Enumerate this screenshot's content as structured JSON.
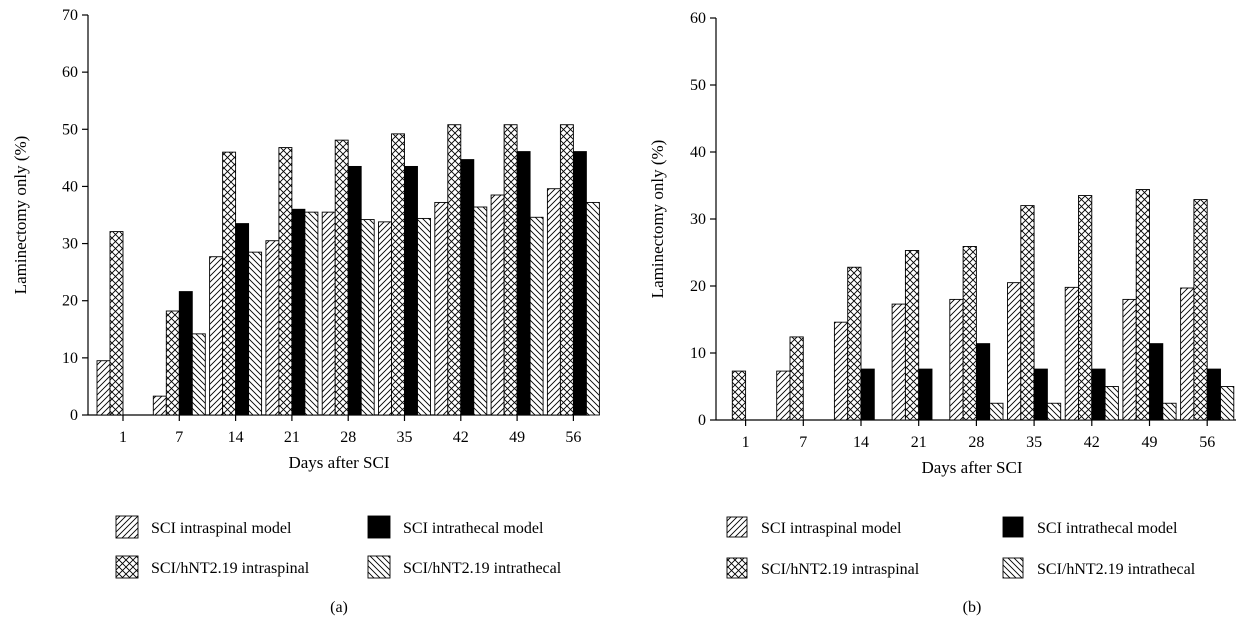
{
  "chart_data": [
    {
      "type": "bar",
      "panel_label": "(a)",
      "xlabel": "Days after SCI",
      "ylabel": "Laminectomy only (%)",
      "ylim": [
        0,
        70
      ],
      "yticks": [
        "0",
        "10",
        "20",
        "30",
        "40",
        "50",
        "60",
        "70"
      ],
      "grid": false,
      "legend_position": "bottom",
      "categories": [
        "1",
        "7",
        "14",
        "21",
        "28",
        "35",
        "42",
        "49",
        "56"
      ],
      "series": [
        {
          "name": "SCI intraspinal model",
          "pattern": "diag-right",
          "values": [
            9.5,
            3.3,
            27.7,
            30.5,
            35.5,
            33.8,
            37.2,
            38.5,
            39.6
          ]
        },
        {
          "name": "SCI/hNT2.19 intraspinal",
          "pattern": "crosshatch",
          "values": [
            32.1,
            18.2,
            46.0,
            46.8,
            48.1,
            49.2,
            50.8,
            50.8,
            50.8
          ]
        },
        {
          "name": "SCI intrathecal model",
          "pattern": "solid",
          "values": [
            0,
            21.6,
            33.5,
            36.0,
            43.5,
            43.5,
            44.7,
            46.1,
            46.1
          ]
        },
        {
          "name": "SCI/hNT2.19 intrathecal",
          "pattern": "diag-left",
          "values": [
            0,
            14.2,
            28.5,
            35.5,
            34.2,
            34.4,
            36.4,
            34.6,
            37.2
          ]
        }
      ]
    },
    {
      "type": "bar",
      "panel_label": "(b)",
      "xlabel": "Days after SCI",
      "ylabel": "Laminectomy only (%)",
      "ylim": [
        0,
        60
      ],
      "yticks": [
        "0",
        "10",
        "20",
        "30",
        "40",
        "50",
        "60"
      ],
      "grid": false,
      "legend_position": "bottom",
      "categories": [
        "1",
        "7",
        "14",
        "21",
        "28",
        "35",
        "42",
        "49",
        "56"
      ],
      "series": [
        {
          "name": "SCI intraspinal model",
          "pattern": "diag-right",
          "values": [
            0,
            7.3,
            14.6,
            17.3,
            18.0,
            20.5,
            19.8,
            18.0,
            19.7
          ]
        },
        {
          "name": "SCI/hNT2.19 intraspinal",
          "pattern": "crosshatch",
          "values": [
            7.3,
            12.4,
            22.8,
            25.3,
            25.9,
            32.0,
            33.5,
            34.4,
            32.9
          ]
        },
        {
          "name": "SCI intrathecal model",
          "pattern": "solid",
          "values": [
            0,
            0,
            7.6,
            7.6,
            11.4,
            7.6,
            7.6,
            11.4,
            7.6
          ]
        },
        {
          "name": "SCI/hNT2.19 intrathecal",
          "pattern": "diag-left",
          "values": [
            0,
            0,
            0,
            0,
            2.5,
            2.5,
            5.0,
            2.5,
            5.0
          ]
        }
      ]
    }
  ],
  "legend_order": [
    "SCI intraspinal model",
    "SCI intrathecal model",
    "SCI/hNT2.19 intraspinal",
    "SCI/hNT2.19 intrathecal"
  ]
}
